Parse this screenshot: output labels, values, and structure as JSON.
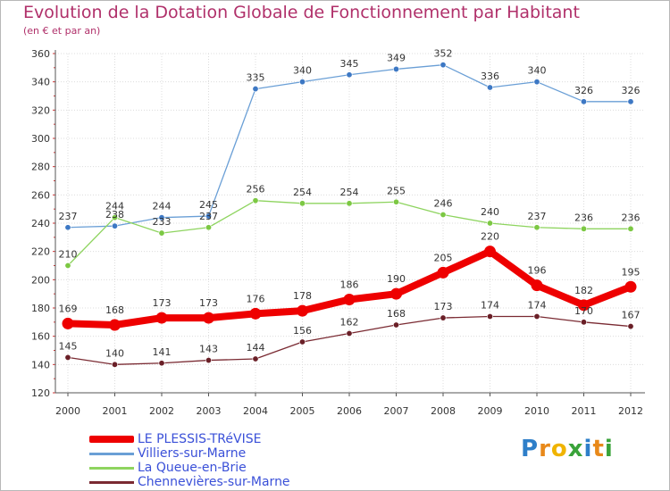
{
  "chart_data": {
    "type": "line",
    "title": "Evolution de la Dotation Globale de Fonctionnement par Habitant",
    "subtitle": "(en € et par an)",
    "xlabel": "",
    "ylabel": "",
    "ylim": [
      120,
      360
    ],
    "yticks": [
      120,
      140,
      160,
      180,
      200,
      220,
      240,
      260,
      280,
      300,
      320,
      340,
      360
    ],
    "categories": [
      "2000",
      "2001",
      "2002",
      "2003",
      "2004",
      "2005",
      "2006",
      "2007",
      "2008",
      "2009",
      "2010",
      "2011",
      "2012"
    ],
    "legend_position": "bottom-left",
    "series": [
      {
        "name": "Villiers-sur-Marne",
        "key": "villiers",
        "color": "#6a9fd6",
        "marker": "#3d78c4",
        "thick": false,
        "values": [
          237,
          238,
          244,
          245,
          335,
          340,
          345,
          349,
          352,
          336,
          340,
          326,
          326
        ]
      },
      {
        "name": "La Queue-en-Brie",
        "key": "queue",
        "color": "#8ed45f",
        "marker": "#7cc843",
        "thick": false,
        "values": [
          210,
          244,
          233,
          237,
          256,
          254,
          254,
          255,
          246,
          240,
          237,
          236,
          236
        ]
      },
      {
        "name": "Chennevières-sur-Marne",
        "key": "chennevieres",
        "color": "#7a2a32",
        "marker": "#6a1f27",
        "thick": false,
        "values": [
          145,
          140,
          141,
          143,
          144,
          156,
          162,
          168,
          173,
          174,
          174,
          170,
          167
        ]
      },
      {
        "name": "LE PLESSIS-TRéVISE",
        "key": "plessis",
        "color": "#ee0000",
        "marker": "#ee0000",
        "thick": true,
        "values": [
          169,
          168,
          173,
          173,
          176,
          178,
          186,
          190,
          205,
          220,
          196,
          182,
          195
        ]
      }
    ],
    "value_labels": {
      "villiers": [
        "237",
        "238",
        "244",
        "245",
        "335",
        "340",
        "345",
        "349",
        "352",
        "336",
        "340",
        "326",
        "326"
      ],
      "queue": [
        "210",
        "244",
        "233",
        "237",
        "256",
        "254",
        "254",
        "255",
        "246",
        "240",
        "237",
        "236",
        "236"
      ],
      "chennevieres": [
        "145",
        "140",
        "141",
        "143",
        "144",
        "156",
        "162",
        "168",
        "173",
        "174",
        "174",
        "170",
        "167"
      ],
      "plessis": [
        "169",
        "168",
        "173",
        "173",
        "176",
        "178",
        "186",
        "190",
        "205",
        "220",
        "196",
        "182",
        "195"
      ]
    }
  },
  "legend": [
    {
      "label": "LE PLESSIS-TRéVISE",
      "color": "#ee0000",
      "thick": true
    },
    {
      "label": "Villiers-sur-Marne",
      "color": "#6a9fd6",
      "thick": false
    },
    {
      "label": "La Queue-en-Brie",
      "color": "#8ed45f",
      "thick": false
    },
    {
      "label": "Chennevières-sur-Marne",
      "color": "#7a2a32",
      "thick": false
    }
  ],
  "brand": {
    "letters": [
      "P",
      "r",
      "o",
      "x",
      "i",
      "t",
      "i"
    ],
    "colors": [
      "#2e7fc9",
      "#e8891a",
      "#f0b400",
      "#3aa33a",
      "#2e7fc9",
      "#e8891a",
      "#3aa33a"
    ]
  }
}
